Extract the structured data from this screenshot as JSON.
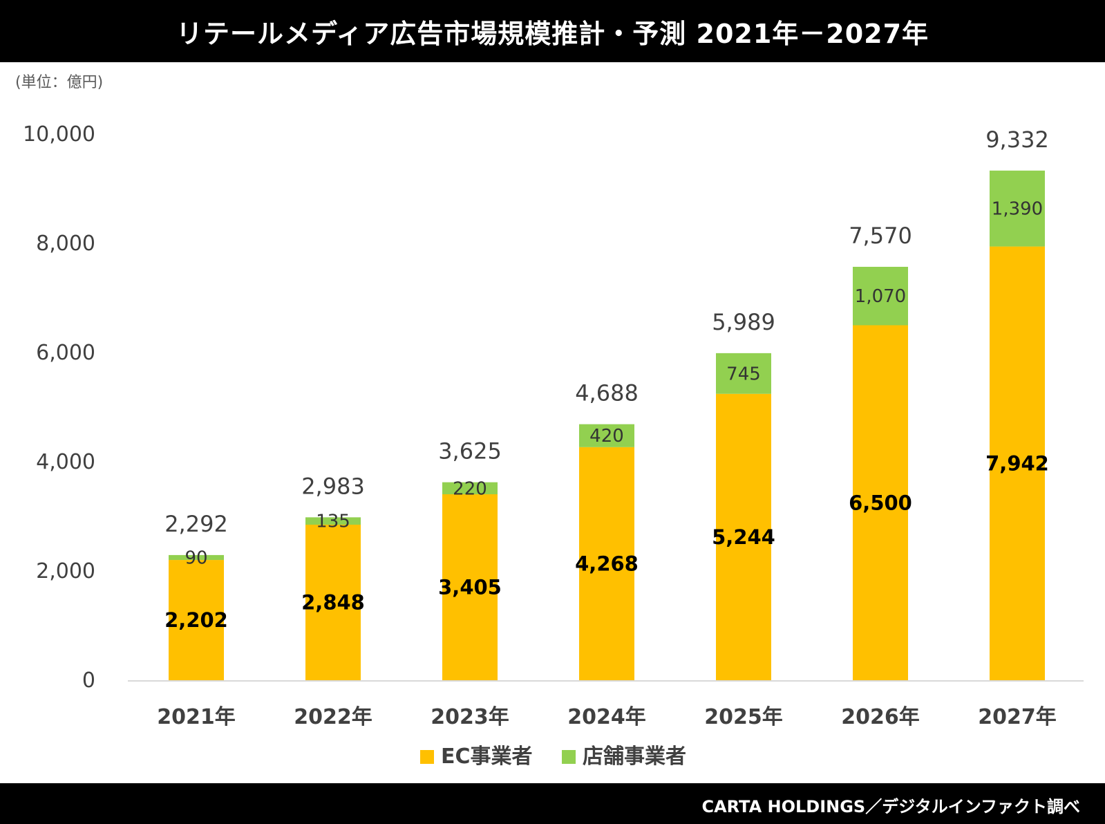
{
  "title": "リテールメディア広告市場規模推計・予測  2021年－2027年",
  "source": "CARTA HOLDINGS／デジタルインファクト調べ",
  "colors": {
    "ec": "#FFC000",
    "store": "#92D050",
    "axis": "#D9D9D9"
  },
  "chart_data": {
    "type": "bar",
    "stacked": true,
    "unit_label": "(単位：億円)",
    "categories": [
      "2021年",
      "2022年",
      "2023年",
      "2024年",
      "2025年",
      "2026年",
      "2027年"
    ],
    "series": [
      {
        "name": "EC事業者",
        "values": [
          2202,
          2848,
          3405,
          4268,
          5244,
          6500,
          7942
        ],
        "labels": [
          "2,202",
          "2,848",
          "3,405",
          "4,268",
          "5,244",
          "6,500",
          "7,942"
        ]
      },
      {
        "name": "店舗事業者",
        "values": [
          90,
          135,
          220,
          420,
          745,
          1070,
          1390
        ],
        "labels": [
          "90",
          "135",
          "220",
          "420",
          "745",
          "1,070",
          "1,390"
        ]
      }
    ],
    "totals": [
      2292,
      2983,
      3625,
      4688,
      5989,
      7570,
      9332
    ],
    "total_labels": [
      "2,292",
      "2,983",
      "3,625",
      "4,688",
      "5,989",
      "7,570",
      "9,332"
    ],
    "ylim": [
      0,
      10000
    ],
    "yticks": [
      0,
      2000,
      4000,
      6000,
      8000,
      10000
    ],
    "ytick_labels": [
      "0",
      "2,000",
      "4,000",
      "6,000",
      "8,000",
      "10,000"
    ],
    "grid": false,
    "legend": "bottom"
  }
}
